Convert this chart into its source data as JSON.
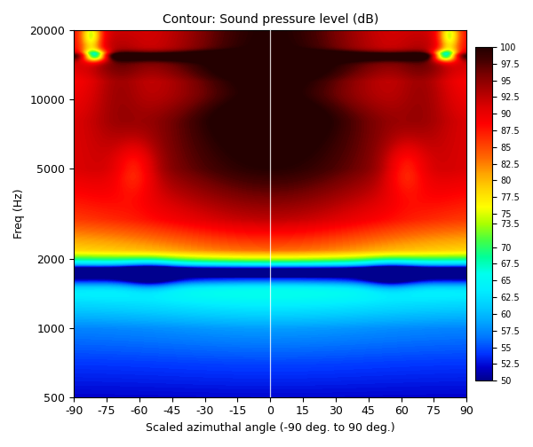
{
  "title": "Contour: Sound pressure level (dB)",
  "xlabel": "Scaled azimuthal angle (-90 deg. to 90 deg.)",
  "ylabel": "Freq (Hz)",
  "x_ticks": [
    -90,
    -75,
    -60,
    -45,
    -30,
    -15,
    0,
    15,
    30,
    45,
    60,
    75,
    90
  ],
  "y_ticks": [
    500,
    1000,
    2000,
    5000,
    10000,
    20000
  ],
  "xlim": [
    -90,
    90
  ],
  "ylim": [
    500,
    20000
  ],
  "vmin": 50,
  "vmax": 100,
  "colorbar_ticks": [
    100,
    97.5,
    95,
    92.5,
    90,
    87.5,
    85,
    82.5,
    80,
    77.5,
    75,
    73.5,
    70,
    67.5,
    65,
    62.5,
    60,
    57.5,
    55,
    52.5,
    50
  ],
  "fig_width": 6.0,
  "fig_height": 5.04,
  "dpi": 100
}
